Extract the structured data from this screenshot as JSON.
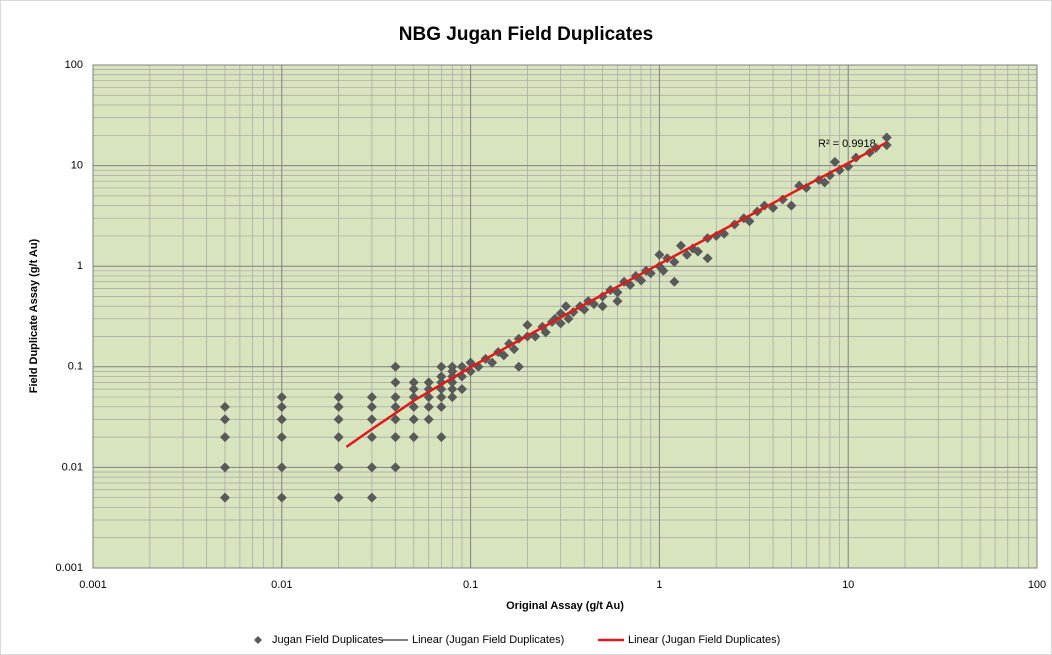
{
  "chart_data": {
    "type": "scatter",
    "title": "NBG Jugan Field Duplicates",
    "xlabel": "Original Assay (g/t Au)",
    "ylabel": "Field Duplicate Assay (g/t Au)",
    "xscale": "log",
    "yscale": "log",
    "xlim": [
      0.001,
      100
    ],
    "ylim": [
      0.001,
      100
    ],
    "xticks": [
      0.001,
      0.01,
      0.1,
      1,
      10,
      100
    ],
    "yticks": [
      0.001,
      0.01,
      0.1,
      1,
      10,
      100
    ],
    "grid": true,
    "minor_grid": true,
    "legend": "bottom",
    "annotation": "R² = 0.9918",
    "series": [
      {
        "name": "Jugan Field Duplicates",
        "type": "scatter",
        "marker": "diamond",
        "color": "#595959",
        "x": [
          0.005,
          0.005,
          0.005,
          0.005,
          0.005,
          0.01,
          0.01,
          0.01,
          0.01,
          0.01,
          0.01,
          0.02,
          0.02,
          0.02,
          0.02,
          0.02,
          0.02,
          0.03,
          0.03,
          0.03,
          0.03,
          0.03,
          0.03,
          0.04,
          0.04,
          0.04,
          0.04,
          0.04,
          0.04,
          0.04,
          0.05,
          0.05,
          0.05,
          0.05,
          0.05,
          0.05,
          0.06,
          0.06,
          0.06,
          0.06,
          0.06,
          0.07,
          0.07,
          0.07,
          0.07,
          0.07,
          0.07,
          0.07,
          0.08,
          0.08,
          0.08,
          0.08,
          0.08,
          0.08,
          0.09,
          0.09,
          0.09,
          0.1,
          0.1,
          0.11,
          0.12,
          0.13,
          0.14,
          0.15,
          0.16,
          0.17,
          0.18,
          0.18,
          0.2,
          0.2,
          0.22,
          0.24,
          0.25,
          0.27,
          0.28,
          0.3,
          0.3,
          0.32,
          0.33,
          0.35,
          0.38,
          0.4,
          0.42,
          0.45,
          0.5,
          0.5,
          0.55,
          0.6,
          0.6,
          0.65,
          0.7,
          0.75,
          0.8,
          0.85,
          0.9,
          1,
          1,
          1.05,
          1.1,
          1.2,
          1.2,
          1.3,
          1.4,
          1.5,
          1.6,
          1.8,
          1.8,
          2,
          2.2,
          2.5,
          2.8,
          3,
          3.3,
          3.6,
          4,
          4.5,
          5,
          5.5,
          6,
          7,
          7.5,
          8,
          8.5,
          9,
          10,
          11,
          13,
          14,
          16,
          16
        ],
        "values": [
          0.005,
          0.01,
          0.02,
          0.03,
          0.04,
          0.005,
          0.01,
          0.02,
          0.03,
          0.04,
          0.05,
          0.005,
          0.01,
          0.02,
          0.03,
          0.04,
          0.05,
          0.005,
          0.01,
          0.02,
          0.03,
          0.04,
          0.05,
          0.01,
          0.02,
          0.03,
          0.04,
          0.05,
          0.07,
          0.1,
          0.02,
          0.03,
          0.04,
          0.05,
          0.06,
          0.07,
          0.03,
          0.04,
          0.05,
          0.06,
          0.07,
          0.02,
          0.04,
          0.05,
          0.06,
          0.07,
          0.08,
          0.1,
          0.05,
          0.06,
          0.07,
          0.08,
          0.09,
          0.1,
          0.06,
          0.08,
          0.1,
          0.09,
          0.11,
          0.1,
          0.12,
          0.11,
          0.14,
          0.13,
          0.17,
          0.15,
          0.1,
          0.19,
          0.2,
          0.26,
          0.2,
          0.25,
          0.22,
          0.28,
          0.3,
          0.27,
          0.34,
          0.4,
          0.3,
          0.35,
          0.4,
          0.37,
          0.45,
          0.42,
          0.5,
          0.4,
          0.58,
          0.55,
          0.45,
          0.7,
          0.65,
          0.8,
          0.72,
          0.9,
          0.85,
          1,
          1.3,
          0.9,
          1.2,
          0.7,
          1.1,
          1.6,
          1.3,
          1.5,
          1.4,
          1.9,
          1.2,
          2,
          2.1,
          2.6,
          3,
          2.8,
          3.5,
          4,
          3.8,
          4.6,
          4,
          6.3,
          6,
          7.2,
          6.8,
          8,
          10.9,
          9,
          9.8,
          12,
          13.5,
          15,
          19,
          16
        ]
      },
      {
        "name": "Linear (Jugan Field Duplicates)",
        "type": "line",
        "color": "#000000",
        "width": 1,
        "x": [
          0.022,
          0.03,
          0.05,
          0.1,
          0.3,
          1,
          3,
          10,
          16
        ],
        "values": [
          0.016,
          0.024,
          0.046,
          0.099,
          0.31,
          1.05,
          3.18,
          10.6,
          17
        ]
      },
      {
        "name": "Linear (Jugan Field Duplicates)",
        "type": "line",
        "color": "#e0191b",
        "width": 2.5,
        "x": [
          0.022,
          0.03,
          0.05,
          0.1,
          0.3,
          1,
          3,
          10,
          16
        ],
        "values": [
          0.016,
          0.024,
          0.046,
          0.099,
          0.31,
          1.05,
          3.18,
          10.6,
          17
        ]
      }
    ]
  }
}
